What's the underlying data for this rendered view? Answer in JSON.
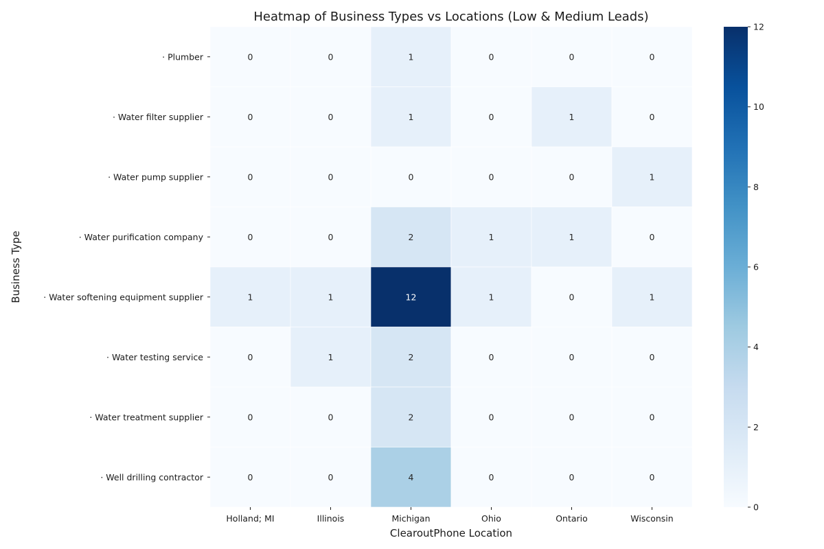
{
  "chart_data": {
    "type": "heatmap",
    "title": "Heatmap of Business Types vs Locations (Low & Medium Leads)",
    "xlabel": "ClearoutPhone Location",
    "ylabel": "Business Type",
    "x_categories": [
      "Holland; MI",
      "Illinois",
      "Michigan",
      "Ohio",
      "Ontario",
      "Wisconsin"
    ],
    "y_categories": [
      "· Plumber",
      "· Water filter supplier",
      "· Water pump supplier",
      "· Water purification company",
      "· Water softening equipment supplier",
      "· Water testing service",
      "· Water treatment supplier",
      "· Well drilling contractor"
    ],
    "values": [
      [
        0,
        0,
        1,
        0,
        0,
        0
      ],
      [
        0,
        0,
        1,
        0,
        1,
        0
      ],
      [
        0,
        0,
        0,
        0,
        0,
        1
      ],
      [
        0,
        0,
        2,
        1,
        1,
        0
      ],
      [
        1,
        1,
        12,
        1,
        0,
        1
      ],
      [
        0,
        1,
        2,
        0,
        0,
        0
      ],
      [
        0,
        0,
        2,
        0,
        0,
        0
      ],
      [
        0,
        0,
        4,
        0,
        0,
        0
      ]
    ],
    "colorbar": {
      "min": 0,
      "max": 12,
      "ticks": [
        "0",
        "2",
        "4",
        "6",
        "8",
        "10",
        "12"
      ]
    },
    "colormap": "Blues",
    "annotated": true,
    "grid": false,
    "legend": "colorbar-right"
  }
}
